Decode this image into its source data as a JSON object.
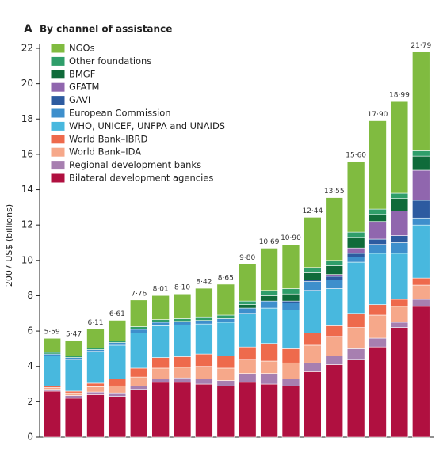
{
  "chart_data": {
    "type": "bar",
    "stacked": true,
    "panel": "A",
    "title": "By channel of assistance",
    "y_label": "2007 US$ (billions)",
    "categories": [
      null,
      null,
      null,
      null,
      null,
      null,
      null,
      null,
      null,
      null,
      null,
      null,
      null,
      null,
      null,
      null,
      null,
      null
    ],
    "ylim": [
      0,
      22
    ],
    "yticks": [
      0,
      2,
      4,
      6,
      8,
      10,
      12,
      14,
      16,
      18,
      20,
      22
    ],
    "series": [
      {
        "name": "Bilateral development agencies",
        "color": "#b01040",
        "values": [
          2.6,
          2.2,
          2.4,
          2.3,
          2.7,
          3.1,
          3.1,
          3.0,
          2.9,
          3.1,
          3.0,
          2.9,
          3.7,
          4.1,
          4.4,
          5.1,
          6.2,
          7.4
        ]
      },
      {
        "name": "Regional development banks",
        "color": "#a77fb0",
        "values": [
          0.1,
          0.15,
          0.15,
          0.2,
          0.2,
          0.2,
          0.25,
          0.3,
          0.3,
          0.5,
          0.6,
          0.4,
          0.5,
          0.5,
          0.6,
          0.5,
          0.3,
          0.4
        ]
      },
      {
        "name": "World Bank–IDA",
        "color": "#f6a88a",
        "values": [
          0.1,
          0.15,
          0.3,
          0.4,
          0.5,
          0.6,
          0.6,
          0.7,
          0.7,
          0.8,
          0.7,
          0.9,
          1.0,
          1.1,
          1.2,
          1.3,
          0.9,
          0.8
        ]
      },
      {
        "name": "World Bank–IBRD",
        "color": "#ee6a4c",
        "values": [
          0.1,
          0.1,
          0.2,
          0.4,
          0.5,
          0.6,
          0.6,
          0.7,
          0.7,
          0.7,
          1.0,
          0.8,
          0.7,
          0.6,
          0.8,
          0.6,
          0.4,
          0.4
        ]
      },
      {
        "name": "WHO, UNICEF, UNFPA and UNAIDS",
        "color": "#48b8de",
        "values": [
          1.7,
          1.8,
          1.8,
          1.9,
          2.0,
          1.8,
          1.8,
          1.7,
          1.9,
          1.9,
          2.0,
          2.2,
          2.4,
          2.1,
          2.9,
          2.9,
          2.6,
          3.0
        ]
      },
      {
        "name": "European Commission",
        "color": "#3e8fcc",
        "values": [
          0.1,
          0.1,
          0.1,
          0.15,
          0.2,
          0.2,
          0.2,
          0.2,
          0.2,
          0.3,
          0.4,
          0.4,
          0.5,
          0.5,
          0.3,
          0.5,
          0.6,
          0.4
        ]
      },
      {
        "name": "GAVI",
        "color": "#2d5ba0",
        "values": [
          0,
          0,
          0,
          0,
          0,
          0,
          0,
          0,
          0,
          0,
          0,
          0.1,
          0.1,
          0.2,
          0.2,
          0.3,
          0.4,
          1.0
        ]
      },
      {
        "name": "GFATM",
        "color": "#9066ae",
        "values": [
          0,
          0,
          0,
          0,
          0,
          0,
          0,
          0,
          0,
          0,
          0,
          0,
          0,
          0.1,
          0.3,
          1.0,
          1.4,
          1.7
        ]
      },
      {
        "name": "BMGF",
        "color": "#0f6b3a",
        "values": [
          0,
          0,
          0,
          0,
          0,
          0,
          0,
          0,
          0,
          0.2,
          0.3,
          0.4,
          0.4,
          0.5,
          0.6,
          0.4,
          0.7,
          0.8
        ]
      },
      {
        "name": "Other foundations",
        "color": "#2f9e6a",
        "values": [
          0.1,
          0.1,
          0.1,
          0.1,
          0.15,
          0.15,
          0.15,
          0.2,
          0.2,
          0.2,
          0.3,
          0.3,
          0.3,
          0.3,
          0.3,
          0.3,
          0.3,
          0.3
        ]
      },
      {
        "name": "NGOs",
        "color": "#80bb40",
        "values": [
          0.79,
          0.87,
          1.06,
          1.16,
          1.51,
          1.36,
          1.4,
          1.62,
          1.75,
          2.1,
          2.39,
          2.5,
          2.84,
          3.55,
          4.0,
          5.0,
          5.19,
          5.59
        ]
      }
    ],
    "totals": [
      5.59,
      5.47,
      6.11,
      6.61,
      7.76,
      8.01,
      8.1,
      8.42,
      8.65,
      9.8,
      10.69,
      10.9,
      12.44,
      13.55,
      15.6,
      17.9,
      18.99,
      21.79
    ],
    "total_labels": [
      "5·59",
      "5·47",
      "6·11",
      "6·61",
      "7·76",
      "8·01",
      "8·10",
      "8·42",
      "8·65",
      "9·80",
      "10·69",
      "10·90",
      "12·44",
      "13·55",
      "15·60",
      "17·90",
      "18·99",
      "21·79"
    ]
  }
}
